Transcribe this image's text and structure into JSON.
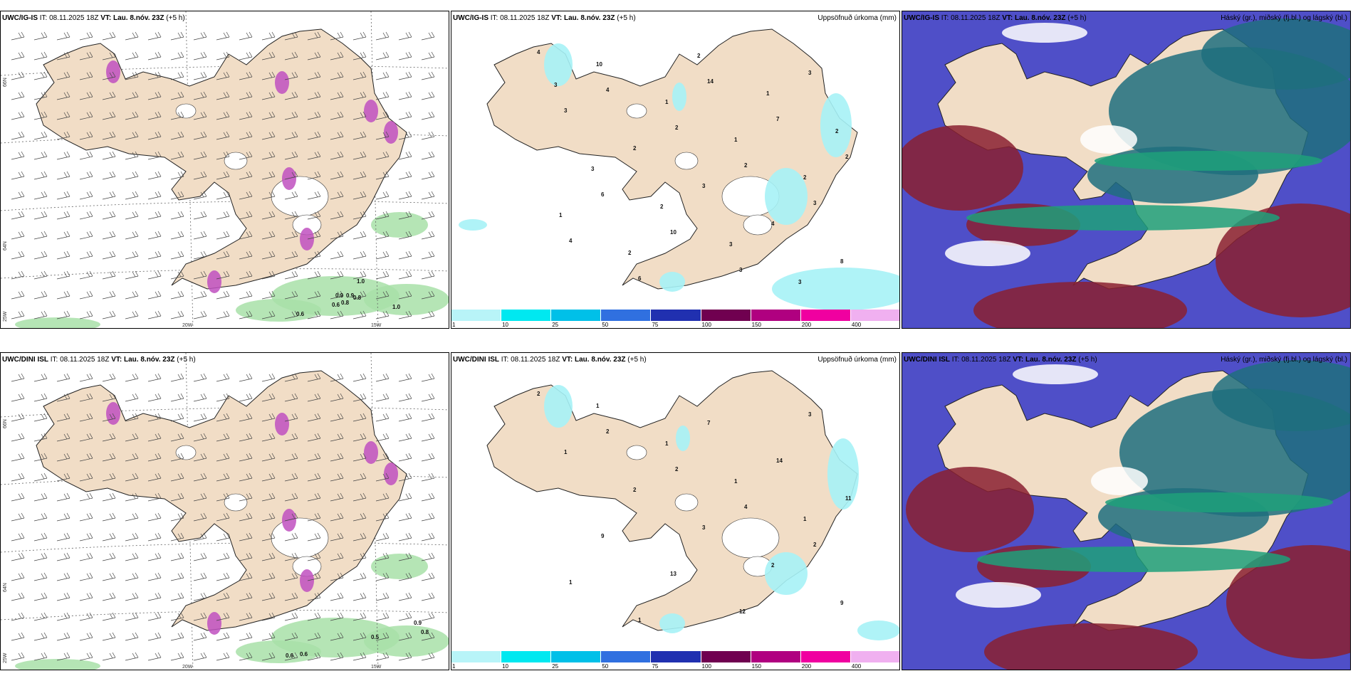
{
  "panels": [
    {
      "model": "UWC/IG-IS",
      "it_label": "IT:",
      "it": "08.11.2025 18Z",
      "vt_label": "VT:",
      "vt": "Lau. 8.nóv. 23Z",
      "lead": "(+5 h)",
      "right_title": ""
    },
    {
      "model": "UWC/IG-IS",
      "it_label": "IT:",
      "it": "08.11.2025 18Z",
      "vt_label": "VT:",
      "vt": "Lau. 8.nóv. 23Z",
      "lead": "(+5 h)",
      "right_title": "Uppsöfnuð úrkoma (mm)"
    },
    {
      "model": "UWC/IG-IS",
      "it_label": "IT:",
      "it": "08.11.2025 18Z",
      "vt_label": "VT:",
      "vt": "Lau. 8.nóv. 23Z",
      "lead": "(+5 h)",
      "right_title": "Háský (gr.), miðský (fj.bl.) og lágský (bl.)"
    },
    {
      "model": "UWC/DINI ISL",
      "it_label": "IT:",
      "it": "08.11.2025 18Z",
      "vt_label": "VT:",
      "vt": "Lau. 8.nóv. 23Z",
      "lead": "(+5 h)",
      "right_title": ""
    },
    {
      "model": "UWC/DINI ISL",
      "it_label": "IT:",
      "it": "08.11.2025 18Z",
      "vt_label": "VT:",
      "vt": "Lau. 8.nóv. 23Z",
      "lead": "(+5 h)",
      "right_title": "Uppsöfnuð úrkoma (mm)"
    },
    {
      "model": "UWC/DINI ISL",
      "it_label": "IT:",
      "it": "08.11.2025 18Z",
      "vt_label": "VT:",
      "vt": "Lau. 8.nóv. 23Z",
      "lead": "(+5 h)",
      "right_title": "Háský (gr.), miðský (fj.bl.) og lágský (bl.)"
    }
  ],
  "axis_labels": {
    "lat66": "66N",
    "lat64": "64N",
    "lat25w": "25W",
    "lon20": "20W",
    "lon15": "15W"
  },
  "colorbar": {
    "ticks": [
      "1",
      "10",
      "25",
      "50",
      "75",
      "100",
      "150",
      "200",
      "400"
    ],
    "colors": [
      "#b8f4f8",
      "#00e8f0",
      "#00c0e8",
      "#3070e0",
      "#2030b0",
      "#700050",
      "#b00080",
      "#f000a0",
      "#f0b0f0"
    ]
  },
  "wind_values": {
    "top": [
      "1.0",
      "0.9",
      "0.9",
      "0.8",
      "0.8",
      "0.6",
      "0.6",
      "1.0"
    ],
    "bottom": [
      "0.9",
      "0.8",
      "0.5",
      "0.6",
      "0.6"
    ]
  },
  "precip_values": {
    "top": [
      "4",
      "4",
      "2",
      "2",
      "3",
      "4",
      "6",
      "14",
      "7",
      "2",
      "6",
      "10",
      "3",
      "3",
      "3",
      "2",
      "3",
      "4",
      "8",
      "10",
      "1",
      "1",
      "2",
      "1",
      "2",
      "2",
      "1",
      "2",
      "3",
      "2",
      "3",
      "3",
      "3"
    ],
    "bottom": [
      "2",
      "2",
      "2",
      "4",
      "2",
      "1",
      "1",
      "7",
      "14",
      "11",
      "9",
      "13",
      "12",
      "3",
      "1",
      "2",
      "3",
      "2",
      "9",
      "1",
      "1",
      "1",
      "1"
    ]
  },
  "colors": {
    "land": "#f1ddc6",
    "cloud_high": "#1e6e7e",
    "cloud_mid": "#4f4fc8",
    "cloud_low": "#8a2030",
    "precip": "#a6f2f6",
    "sea_wind_green": "#a8e0a8"
  }
}
